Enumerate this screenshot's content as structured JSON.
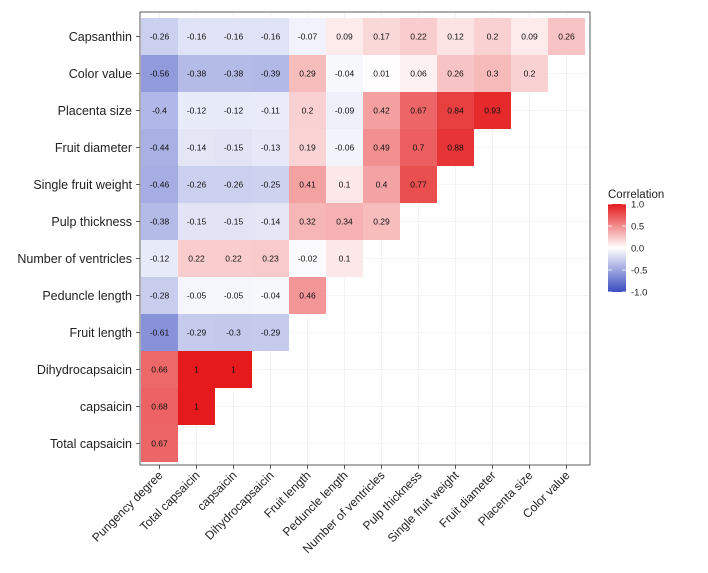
{
  "chart_data": {
    "type": "heatmap",
    "title": "",
    "xlabel": "",
    "ylabel": "",
    "x_labels": [
      "Pungency degree",
      "Total capsaicin",
      "capsaicin",
      "Dihydrocapsaicin",
      "Fruit length",
      "Peduncle length",
      "Number of ventricles",
      "Pulp thickness",
      "Single fruit weight",
      "Fruit diameter",
      "Placenta size",
      "Color value"
    ],
    "y_labels": [
      "Capsanthin",
      "Color value",
      "Placenta size",
      "Fruit diameter",
      "Single fruit weight",
      "Pulp thickness",
      "Number of ventricles",
      "Peduncle length",
      "Fruit length",
      "Dihydrocapsaicin",
      "capsaicin",
      "Total capsaicin"
    ],
    "rows": [
      [
        "-0.26",
        "-0.16",
        "-0.16",
        "-0.16",
        "-0.07",
        "0.09",
        "0.17",
        "0.22",
        "0.12",
        "0.2",
        "0.09",
        "0.26"
      ],
      [
        "-0.56",
        "-0.38",
        "-0.38",
        "-0.39",
        "0.29",
        "-0.04",
        "0.01",
        "0.06",
        "0.26",
        "0.3",
        "0.2"
      ],
      [
        "-0.4",
        "-0.12",
        "-0.12",
        "-0.11",
        "0.2",
        "-0.09",
        "0.42",
        "0.67",
        "0.84",
        "0.93"
      ],
      [
        "-0.44",
        "-0.14",
        "-0.15",
        "-0.13",
        "0.19",
        "-0.06",
        "0.49",
        "0.7",
        "0.88"
      ],
      [
        "-0.46",
        "-0.26",
        "-0.26",
        "-0.25",
        "0.41",
        "0.1",
        "0.4",
        "0.77"
      ],
      [
        "-0.38",
        "-0.15",
        "-0.15",
        "-0.14",
        "0.32",
        "0.34",
        "0.29"
      ],
      [
        "-0.12",
        "0.22",
        "0.22",
        "0.23",
        "-0.02",
        "0.1"
      ],
      [
        "-0.28",
        "-0.05",
        "-0.05",
        "-0.04",
        "0.46"
      ],
      [
        "-0.61",
        "-0.29",
        "-0.3",
        "-0.29"
      ],
      [
        "0.66",
        "1",
        "1"
      ],
      [
        "0.68",
        "1"
      ],
      [
        "0.67"
      ]
    ],
    "legend": {
      "title": "Correlation",
      "ticks": [
        "1.0",
        "0.5",
        "0.0",
        "-0.5",
        "-1.0"
      ],
      "range": [
        -1,
        1
      ],
      "placement": "right"
    },
    "colors": {
      "low": "#3B4CC0",
      "mid": "#FFFFFF",
      "high": "#E41A1C"
    },
    "grid": true
  }
}
